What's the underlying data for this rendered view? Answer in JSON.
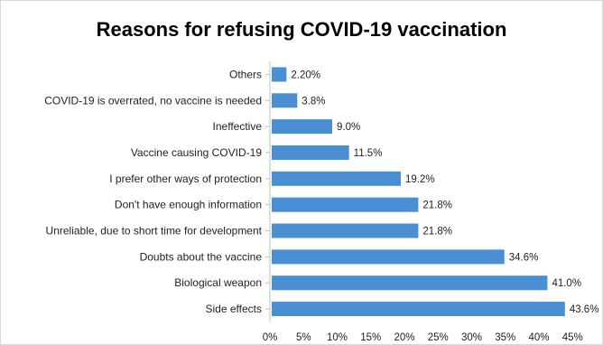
{
  "chart_data": {
    "type": "bar",
    "orientation": "horizontal",
    "title": "Reasons for refusing COVID-19 vaccination",
    "xlabel": "",
    "ylabel": "",
    "categories": [
      "Others",
      "COVID-19 is overrated, no vaccine is needed",
      "Ineffective",
      "Vaccine causing COVID-19",
      "I prefer other ways of protection",
      "Don't have enough information",
      "Unreliable, due to short time for development",
      "Doubts about the vaccine",
      "Biological weapon",
      "Side effects"
    ],
    "values": [
      2.2,
      3.8,
      9.0,
      11.5,
      19.2,
      21.8,
      21.8,
      34.6,
      41.0,
      43.6
    ],
    "value_labels": [
      "2.20%",
      "3.8%",
      "9.0%",
      "11.5%",
      "19.2%",
      "21.8%",
      "21.8%",
      "34.6%",
      "41.0%",
      "43.6%"
    ],
    "xticks": [
      "0%",
      "5%",
      "10%",
      "15%",
      "20%",
      "25%",
      "30%",
      "35%",
      "40%",
      "45%"
    ],
    "xlim": [
      0,
      45
    ],
    "bar_color": "#4a8fd4",
    "grid": false,
    "legend": "none"
  }
}
